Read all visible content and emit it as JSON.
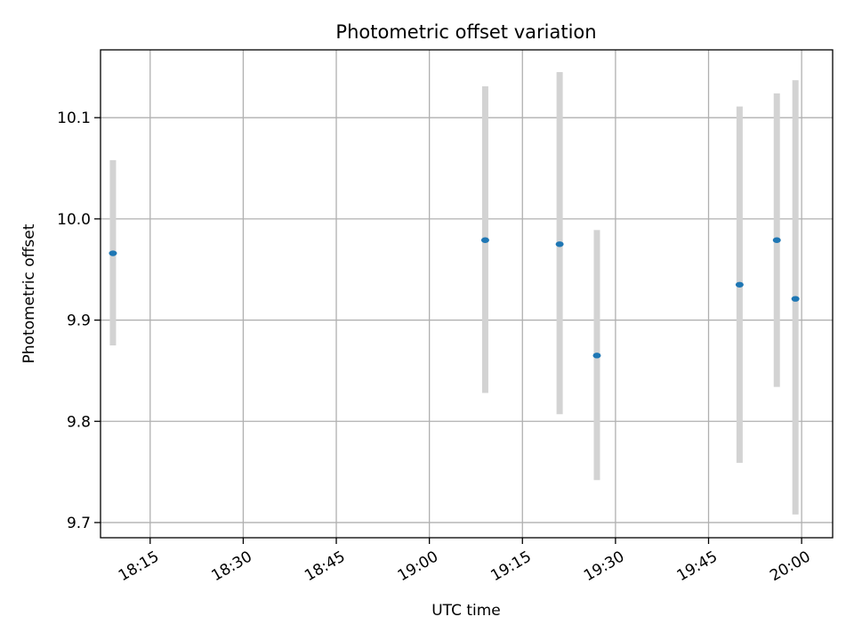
{
  "chart_data": {
    "type": "scatter",
    "title": "Photometric offset variation",
    "xlabel": "UTC time",
    "ylabel": "Photometric offset",
    "x_axis": {
      "unit": "time-of-day",
      "range": [
        "18:07",
        "20:05"
      ],
      "ticks": [
        "18:15",
        "18:30",
        "18:45",
        "19:00",
        "19:15",
        "19:30",
        "19:45",
        "20:00"
      ],
      "tick_label_rotation": 30
    },
    "y_axis": {
      "range": [
        9.685,
        10.167
      ],
      "ticks": [
        "9.7",
        "9.8",
        "9.9",
        "10.0",
        "10.1"
      ]
    },
    "grid": true,
    "legend": "none",
    "colors": {
      "point": "#1f77b4",
      "errorbar": "#d3d3d3",
      "grid": "#b0b0b0"
    },
    "series": [
      {
        "points": [
          {
            "x": "18:09",
            "y": 9.966,
            "ylow": 9.875,
            "yhigh": 10.058
          },
          {
            "x": "19:09",
            "y": 9.979,
            "ylow": 9.828,
            "yhigh": 10.131
          },
          {
            "x": "19:21",
            "y": 9.975,
            "ylow": 9.807,
            "yhigh": 10.145
          },
          {
            "x": "19:27",
            "y": 9.865,
            "ylow": 9.742,
            "yhigh": 9.989
          },
          {
            "x": "19:50",
            "y": 9.935,
            "ylow": 9.759,
            "yhigh": 10.111
          },
          {
            "x": "19:56",
            "y": 9.979,
            "ylow": 9.834,
            "yhigh": 10.124
          },
          {
            "x": "19:59",
            "y": 9.921,
            "ylow": 9.708,
            "yhigh": 10.137
          }
        ]
      }
    ]
  }
}
